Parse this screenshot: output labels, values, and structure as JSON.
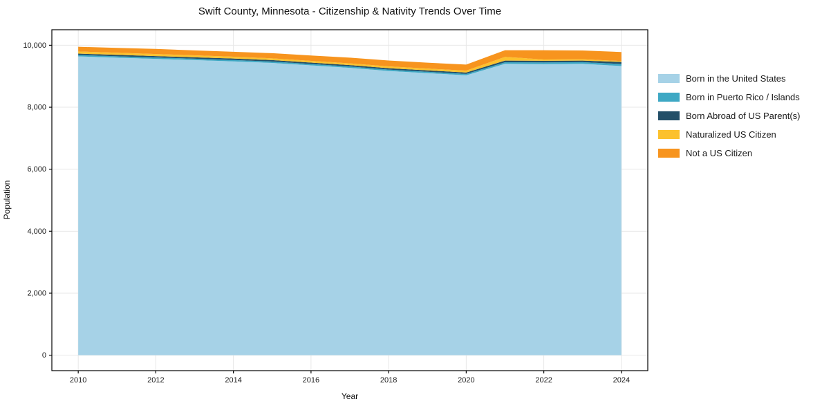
{
  "title": "Swift County, Minnesota - Citizenship & Nativity Trends Over Time",
  "axes": {
    "x_label": "Year",
    "y_label": "Population"
  },
  "legend": {
    "position": "right-outside",
    "items": [
      {
        "label": "Born in the United States",
        "color": "#a6d2e7"
      },
      {
        "label": "Born in Puerto Rico / Islands",
        "color": "#3ea8c4"
      },
      {
        "label": "Born Abroad of US Parent(s)",
        "color": "#234f68"
      },
      {
        "label": "Naturalized US Citizen",
        "color": "#fcc12d"
      },
      {
        "label": "Not a US Citizen",
        "color": "#f7941e"
      }
    ]
  },
  "chart_data": {
    "type": "area",
    "stacked": true,
    "title": "Swift County, Minnesota - Citizenship & Nativity Trends Over Time",
    "xlabel": "Year",
    "ylabel": "Population",
    "x": [
      2010,
      2011,
      2012,
      2013,
      2014,
      2015,
      2016,
      2017,
      2018,
      2019,
      2020,
      2021,
      2022,
      2023,
      2024
    ],
    "series": [
      {
        "name": "Born in the United States",
        "color": "#a6d2e7",
        "values": [
          9640,
          9600,
          9560,
          9520,
          9480,
          9430,
          9350,
          9270,
          9170,
          9100,
          9030,
          9400,
          9390,
          9400,
          9330
        ]
      },
      {
        "name": "Born in Puerto Rico / Islands",
        "color": "#3ea8c4",
        "values": [
          45,
          45,
          45,
          45,
          45,
          45,
          45,
          45,
          45,
          45,
          45,
          50,
          55,
          55,
          65
        ]
      },
      {
        "name": "Born Abroad of US Parent(s)",
        "color": "#234f68",
        "values": [
          45,
          45,
          45,
          45,
          45,
          45,
          45,
          45,
          45,
          45,
          45,
          55,
          55,
          50,
          65
        ]
      },
      {
        "name": "Naturalized US Citizen",
        "color": "#fcc12d",
        "values": [
          70,
          68,
          65,
          63,
          60,
          58,
          55,
          55,
          58,
          58,
          60,
          120,
          40,
          45,
          30
        ]
      },
      {
        "name": "Not a US Citizen",
        "color": "#f7941e",
        "values": [
          150,
          155,
          165,
          160,
          160,
          165,
          175,
          185,
          190,
          190,
          195,
          215,
          300,
          280,
          290
        ]
      }
    ],
    "xlim": [
      2009.32,
      2024.68
    ],
    "ylim": [
      -500,
      10500
    ],
    "x_ticks": [
      2010,
      2012,
      2014,
      2016,
      2018,
      2020,
      2022,
      2024
    ],
    "x_tick_labels": [
      "2010",
      "2012",
      "2014",
      "2016",
      "2018",
      "2020",
      "2022",
      "2024"
    ],
    "y_ticks": [
      0,
      2000,
      4000,
      6000,
      8000,
      10000
    ],
    "y_tick_labels": [
      "0",
      "2,000",
      "4,000",
      "6,000",
      "8,000",
      "10,000"
    ],
    "grid": true,
    "grid_color": "#e7e7e7",
    "axis_color": "#000000",
    "tick_label_color": "#191919",
    "legend_position": "right"
  }
}
